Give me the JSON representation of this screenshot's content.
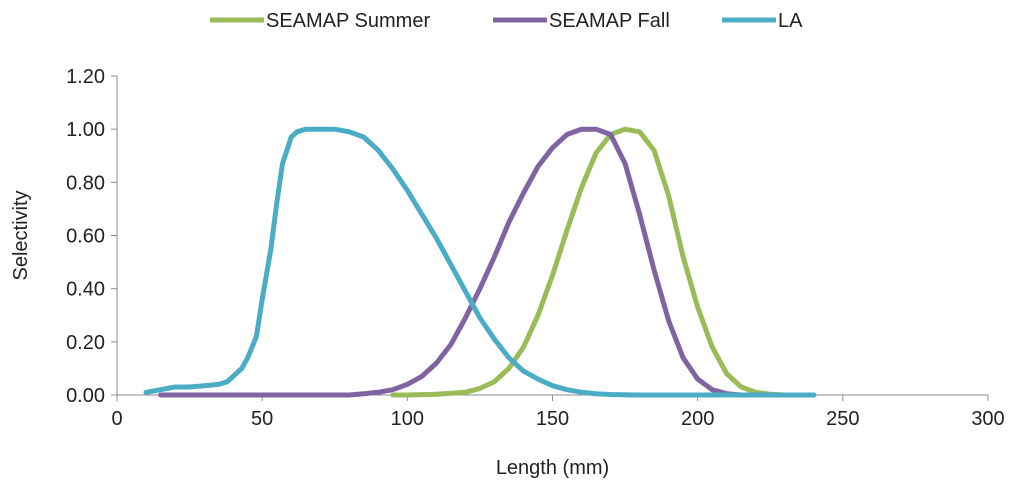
{
  "chart_data": {
    "type": "line",
    "xlabel": "Length (mm)",
    "ylabel": "Selectivity",
    "xlim": [
      0,
      300
    ],
    "ylim": [
      0,
      1.2
    ],
    "x_ticks": [
      0,
      50,
      100,
      150,
      200,
      250,
      300
    ],
    "y_ticks": [
      0.0,
      0.2,
      0.4,
      0.6,
      0.8,
      1.0,
      1.2
    ],
    "x_tick_labels": [
      "0",
      "50",
      "100",
      "150",
      "200",
      "250",
      "300"
    ],
    "y_tick_labels": [
      "0.00",
      "0.20",
      "0.40",
      "0.60",
      "0.80",
      "1.00",
      "1.20"
    ],
    "grid": false,
    "legend_position": "top",
    "series": [
      {
        "name": "SEAMAP Summer",
        "color": "#9bbb59",
        "x": [
          95,
          100,
          110,
          120,
          125,
          130,
          135,
          140,
          145,
          150,
          155,
          160,
          165,
          170,
          175,
          180,
          185,
          190,
          195,
          200,
          205,
          210,
          215,
          220,
          225,
          230,
          240
        ],
        "y": [
          0.0,
          0.0,
          0.003,
          0.01,
          0.025,
          0.05,
          0.1,
          0.18,
          0.3,
          0.45,
          0.62,
          0.78,
          0.91,
          0.98,
          1.0,
          0.99,
          0.92,
          0.75,
          0.52,
          0.33,
          0.18,
          0.08,
          0.03,
          0.01,
          0.003,
          0.0,
          0.0
        ]
      },
      {
        "name": "SEAMAP Fall",
        "color": "#8064a2",
        "x": [
          15,
          50,
          80,
          85,
          90,
          95,
          100,
          105,
          110,
          115,
          120,
          125,
          130,
          135,
          140,
          145,
          150,
          155,
          160,
          165,
          170,
          175,
          180,
          185,
          190,
          195,
          200,
          205,
          210,
          215,
          220,
          230,
          240
        ],
        "y": [
          0.0,
          0.0,
          0.0,
          0.005,
          0.01,
          0.02,
          0.04,
          0.07,
          0.12,
          0.19,
          0.29,
          0.4,
          0.52,
          0.65,
          0.76,
          0.86,
          0.93,
          0.98,
          1.0,
          1.0,
          0.98,
          0.87,
          0.68,
          0.47,
          0.28,
          0.14,
          0.06,
          0.02,
          0.005,
          0.0,
          0.0,
          0.0,
          0.0
        ]
      },
      {
        "name": "LA",
        "color": "#4bacc6",
        "x": [
          10,
          15,
          20,
          25,
          30,
          35,
          38,
          40,
          43,
          45,
          48,
          50,
          53,
          55,
          57,
          60,
          62,
          65,
          70,
          75,
          80,
          85,
          90,
          95,
          100,
          105,
          110,
          115,
          120,
          125,
          130,
          135,
          140,
          145,
          150,
          155,
          160,
          165,
          170,
          180,
          200,
          240
        ],
        "y": [
          0.01,
          0.02,
          0.03,
          0.03,
          0.035,
          0.04,
          0.05,
          0.07,
          0.1,
          0.14,
          0.22,
          0.36,
          0.55,
          0.72,
          0.87,
          0.97,
          0.99,
          1.0,
          1.0,
          1.0,
          0.99,
          0.97,
          0.92,
          0.85,
          0.77,
          0.68,
          0.59,
          0.49,
          0.39,
          0.29,
          0.21,
          0.14,
          0.09,
          0.06,
          0.035,
          0.02,
          0.01,
          0.005,
          0.002,
          0.0,
          0.0,
          0.0
        ]
      }
    ]
  }
}
